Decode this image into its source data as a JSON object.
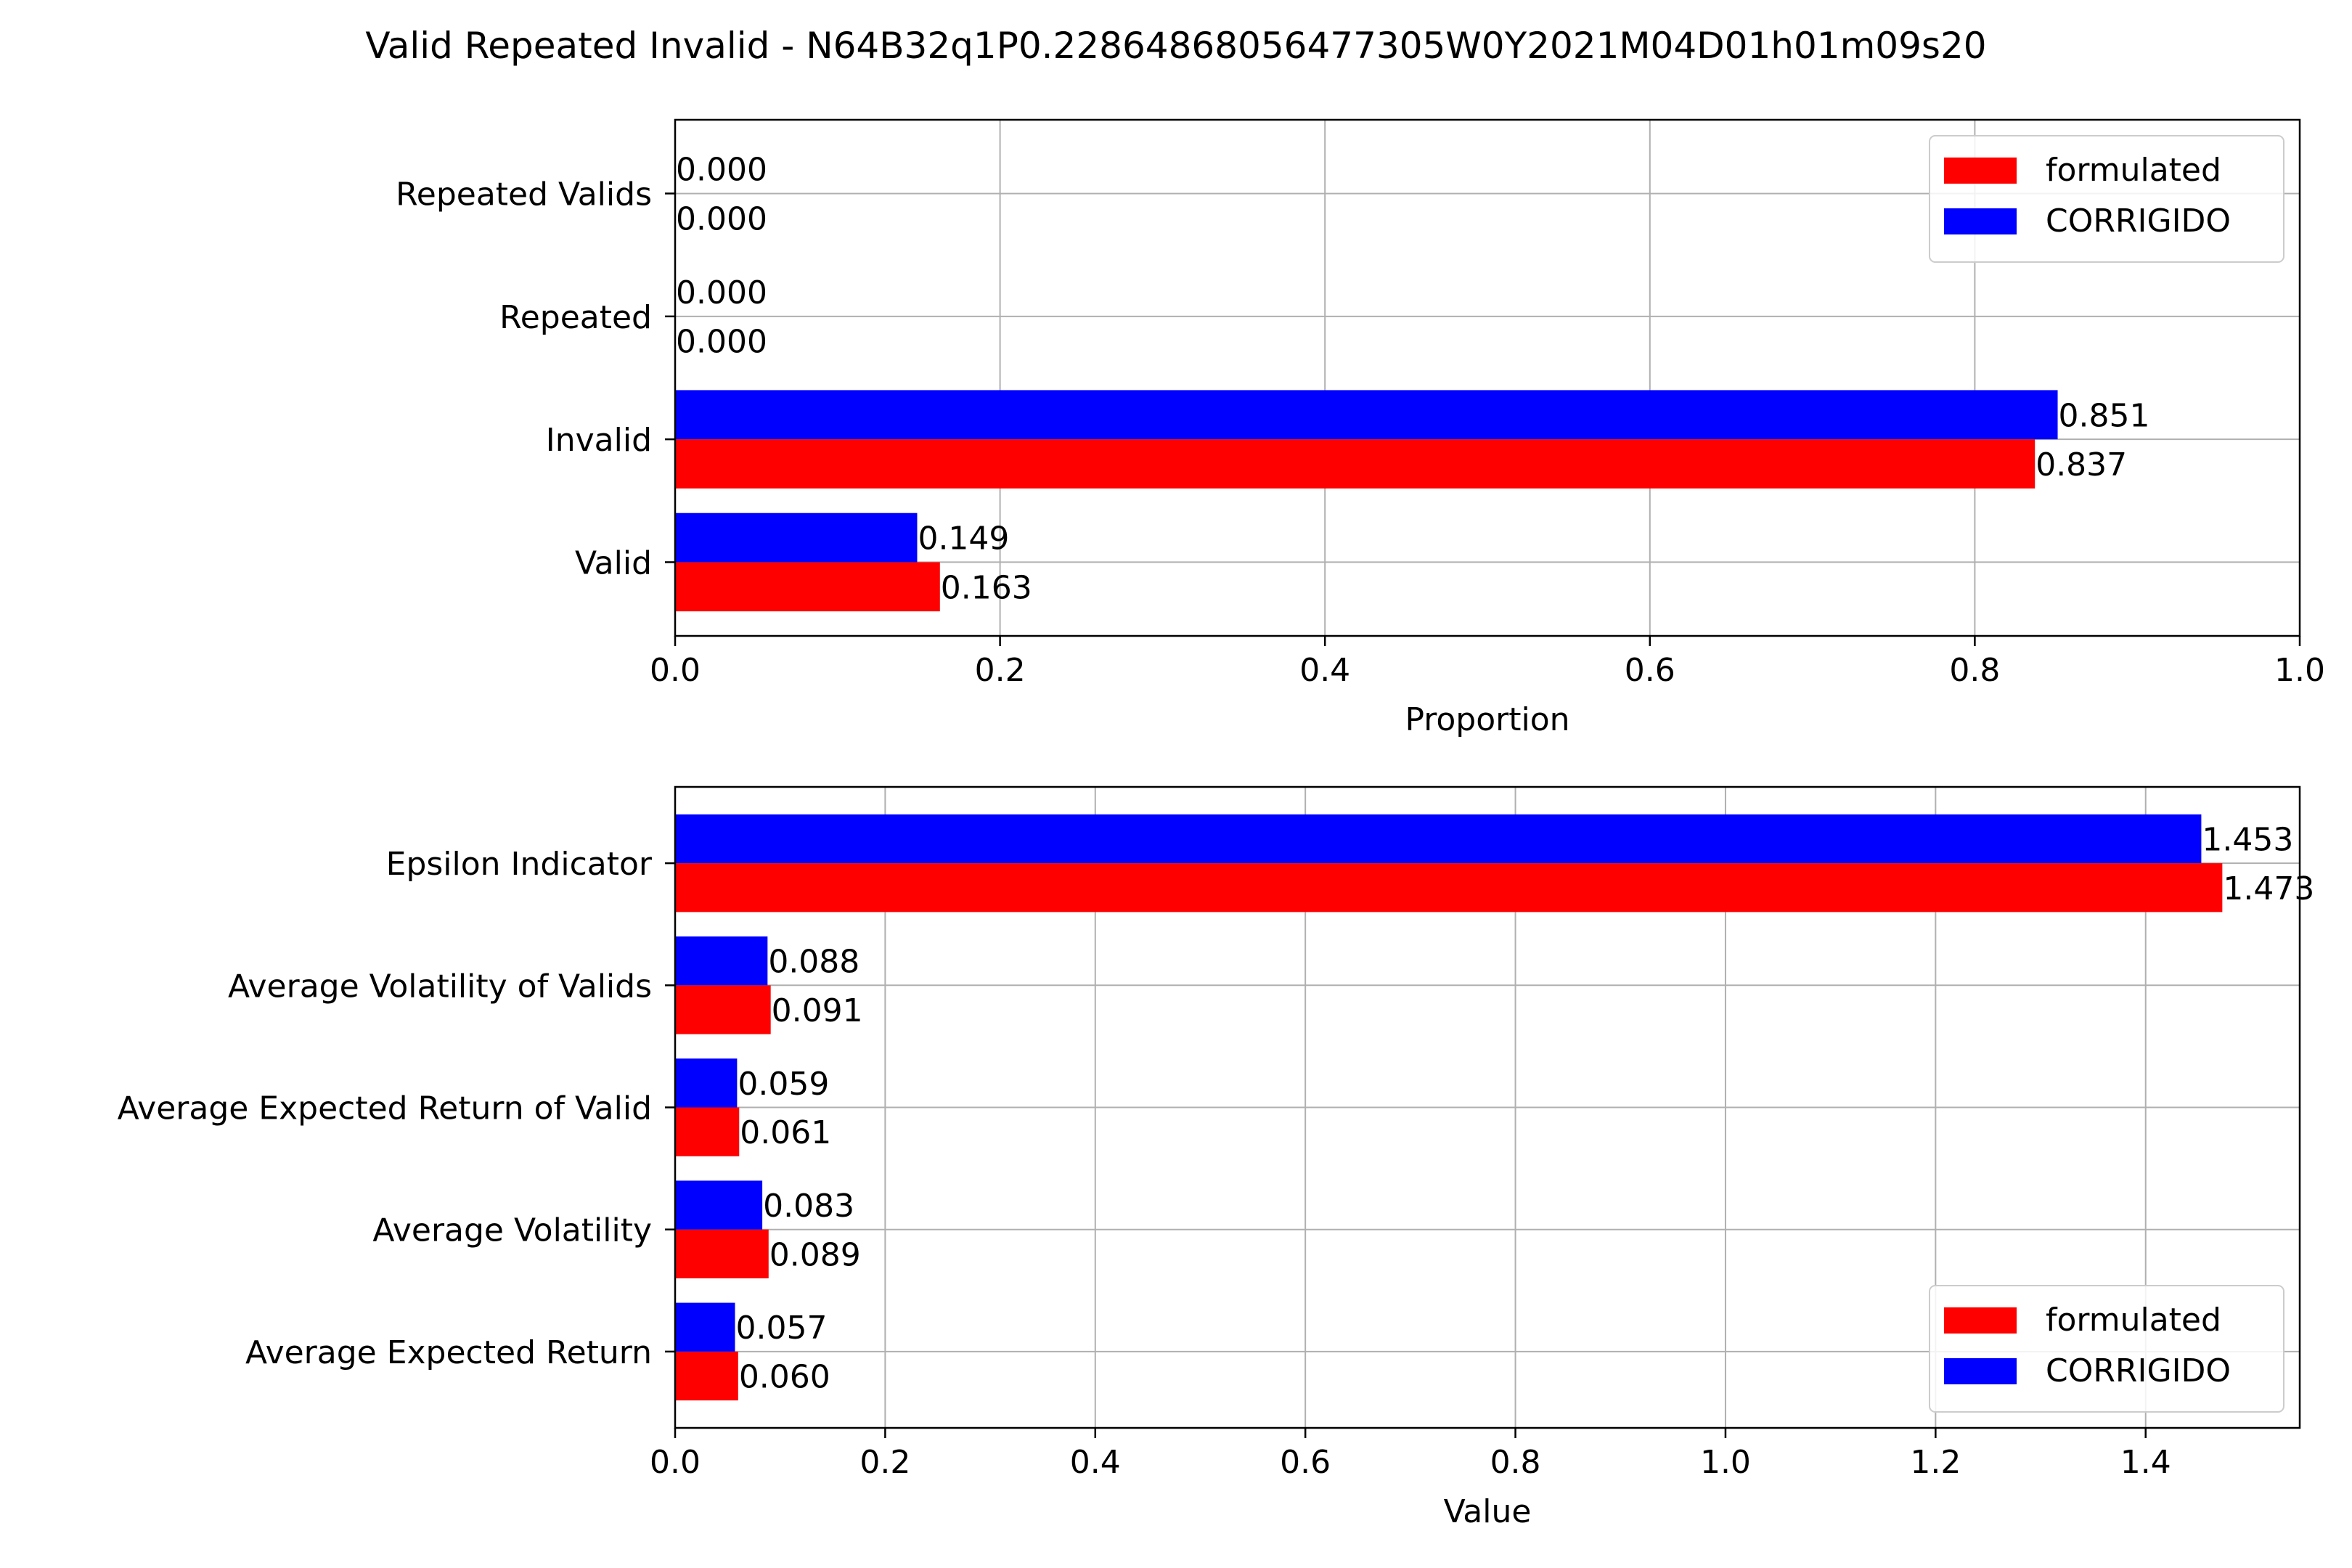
{
  "figure": {
    "title": "Valid Repeated Invalid - N64B32q1P0.2286486805647730 5W0Y2021M04D01h01m09s20"
  },
  "colors": {
    "formulated": "#ff0000",
    "corrigido": "#0000ff",
    "grid": "#b0b0b0"
  },
  "chart_data": [
    {
      "type": "bar",
      "orientation": "horizontal",
      "categories": [
        "Valid",
        "Invalid",
        "Repeated",
        "Repeated Valids"
      ],
      "series": [
        {
          "name": "formulated",
          "values": [
            0.163,
            0.837,
            0.0,
            0.0
          ],
          "labels": [
            "0.163",
            "0.837",
            "0.000",
            "0.000"
          ]
        },
        {
          "name": "CORRIGIDO",
          "values": [
            0.149,
            0.851,
            0.0,
            0.0
          ],
          "labels": [
            "0.149",
            "0.851",
            "0.000",
            "0.000"
          ]
        }
      ],
      "xlabel": "Proportion",
      "ylabel": "",
      "xlim": [
        0,
        1.0
      ],
      "xticks": [
        "0.0",
        "0.2",
        "0.4",
        "0.6",
        "0.8",
        "1.0"
      ],
      "grid": true,
      "legend": "top-right"
    },
    {
      "type": "bar",
      "orientation": "horizontal",
      "categories": [
        "Average Expected Return",
        "Average Volatility",
        "Average Expected Return of Valid",
        "Average Volatility of Valids",
        "Epsilon Indicator"
      ],
      "series": [
        {
          "name": "formulated",
          "values": [
            0.06,
            0.089,
            0.061,
            0.091,
            1.473
          ],
          "labels": [
            "0.060",
            "0.089",
            "0.061",
            "0.091",
            "1.473"
          ]
        },
        {
          "name": "CORRIGIDO",
          "values": [
            0.057,
            0.083,
            0.059,
            0.088,
            1.453
          ],
          "labels": [
            "0.057",
            "0.083",
            "0.059",
            "0.088",
            "1.453"
          ]
        }
      ],
      "xlabel": "Value",
      "ylabel": "",
      "xlim": [
        0,
        1.5467
      ],
      "xticks": [
        "0.0",
        "0.2",
        "0.4",
        "0.6",
        "0.8",
        "1.0",
        "1.2",
        "1.4"
      ],
      "grid": true,
      "legend": "bottom-right"
    }
  ]
}
